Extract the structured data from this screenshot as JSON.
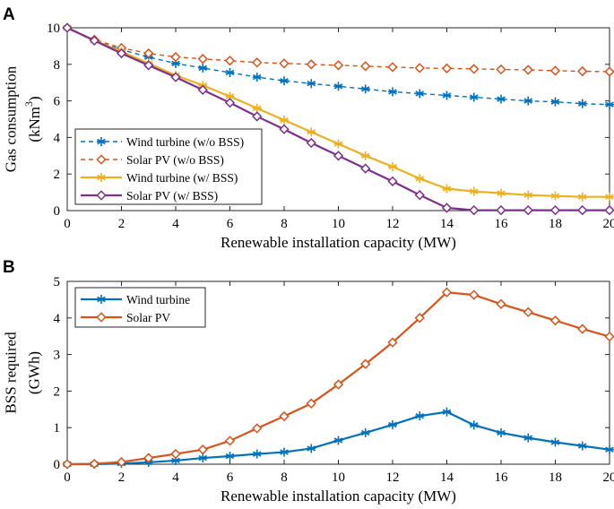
{
  "chart_data": [
    {
      "panel": "A",
      "type": "line",
      "title": "",
      "xlabel": "Renewable installation capacity (MW)",
      "ylabel": "Gas consumption",
      "ylabel_unit": "(kNm",
      "ylabel_unit_sup": "3",
      "ylabel_unit_close": ")",
      "xlim": [
        0,
        20
      ],
      "ylim": [
        0,
        10
      ],
      "xticks": [
        0,
        2,
        4,
        6,
        8,
        10,
        12,
        14,
        16,
        18,
        20
      ],
      "yticks": [
        0,
        2,
        4,
        6,
        8,
        10
      ],
      "legend_position": "bottom-left",
      "x": [
        0,
        1,
        2,
        3,
        4,
        5,
        6,
        7,
        8,
        9,
        10,
        11,
        12,
        13,
        14,
        15,
        16,
        17,
        18,
        19,
        20
      ],
      "series": [
        {
          "name": "Wind turbine (w/o BSS)",
          "color": "#0072BD",
          "line": "dashed",
          "marker": "asterisk",
          "values": [
            10,
            9.3,
            8.8,
            8.4,
            8.05,
            7.8,
            7.55,
            7.3,
            7.1,
            6.95,
            6.8,
            6.65,
            6.5,
            6.4,
            6.3,
            6.2,
            6.1,
            6.0,
            5.95,
            5.85,
            5.8
          ]
        },
        {
          "name": "Solar PV (w/o BSS)",
          "color": "#D95319",
          "line": "dashed",
          "marker": "diamond-open",
          "values": [
            10,
            9.35,
            8.9,
            8.6,
            8.4,
            8.3,
            8.2,
            8.1,
            8.05,
            8.0,
            7.95,
            7.9,
            7.85,
            7.8,
            7.78,
            7.75,
            7.72,
            7.7,
            7.65,
            7.62,
            7.6
          ]
        },
        {
          "name": "Wind turbine (w/ BSS)",
          "color": "#EDB120",
          "line": "solid",
          "marker": "asterisk",
          "values": [
            10,
            9.3,
            8.7,
            8.05,
            7.4,
            6.85,
            6.25,
            5.6,
            4.95,
            4.3,
            3.65,
            3.0,
            2.4,
            1.75,
            1.2,
            1.05,
            0.95,
            0.85,
            0.8,
            0.75,
            0.75
          ]
        },
        {
          "name": "Solar PV (w/ BSS)",
          "color": "#7E2F8E",
          "line": "solid",
          "marker": "diamond-open",
          "values": [
            10,
            9.3,
            8.6,
            7.95,
            7.3,
            6.6,
            5.9,
            5.15,
            4.45,
            3.7,
            3.0,
            2.3,
            1.6,
            0.85,
            0.15,
            0.02,
            0.02,
            0.02,
            0.02,
            0.02,
            0.02
          ]
        }
      ]
    },
    {
      "panel": "B",
      "type": "line",
      "title": "",
      "xlabel": "Renewable installation capacity (MW)",
      "ylabel": "BSS required",
      "ylabel_unit": "(GWh)",
      "xlim": [
        0,
        20
      ],
      "ylim": [
        0,
        5
      ],
      "xticks": [
        0,
        2,
        4,
        6,
        8,
        10,
        12,
        14,
        16,
        18,
        20
      ],
      "yticks": [
        0,
        1,
        2,
        3,
        4,
        5
      ],
      "legend_position": "top-left",
      "x": [
        0,
        1,
        2,
        3,
        4,
        5,
        6,
        7,
        8,
        9,
        10,
        11,
        12,
        13,
        14,
        15,
        16,
        17,
        18,
        19,
        20
      ],
      "series": [
        {
          "name": "Wind turbine",
          "color": "#0072BD",
          "line": "solid",
          "marker": "asterisk",
          "values": [
            0,
            0,
            0.02,
            0.05,
            0.1,
            0.17,
            0.22,
            0.28,
            0.33,
            0.43,
            0.65,
            0.86,
            1.08,
            1.32,
            1.43,
            1.07,
            0.86,
            0.72,
            0.6,
            0.5,
            0.4
          ]
        },
        {
          "name": "Solar PV",
          "color": "#D95319",
          "line": "solid",
          "marker": "diamond-open",
          "values": [
            0,
            0.01,
            0.06,
            0.17,
            0.28,
            0.4,
            0.64,
            0.98,
            1.31,
            1.66,
            2.18,
            2.74,
            3.33,
            4.0,
            4.7,
            4.63,
            4.38,
            4.16,
            3.93,
            3.7,
            3.49
          ]
        }
      ]
    }
  ]
}
